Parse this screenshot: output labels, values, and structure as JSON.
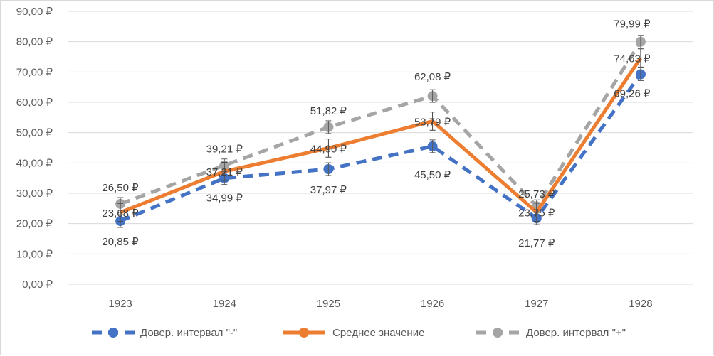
{
  "chart_data": {
    "type": "line",
    "title": "",
    "xlabel": "",
    "ylabel": "",
    "categories": [
      "1923",
      "1924",
      "1925",
      "1926",
      "1927",
      "1928"
    ],
    "ylim": [
      0,
      90
    ],
    "yticks": [
      0,
      10,
      20,
      30,
      40,
      50,
      60,
      70,
      80,
      90
    ],
    "ytick_labels": [
      "0,00 ₽",
      "10,00 ₽",
      "20,00 ₽",
      "30,00 ₽",
      "40,00 ₽",
      "50,00 ₽",
      "60,00 ₽",
      "70,00 ₽",
      "80,00 ₽",
      "90,00 ₽"
    ],
    "grid": true,
    "legend_position": "bottom",
    "series": [
      {
        "name": "Довер. интервал \"-\"",
        "values": [
          20.85,
          34.99,
          37.97,
          45.5,
          21.77,
          69.26
        ],
        "labels": [
          "20,85 ₽",
          "34,99 ₽",
          "37,97 ₽",
          "45,50 ₽",
          "21,77 ₽",
          "69,26 ₽"
        ],
        "color": "#4472c4",
        "style": "dashed"
      },
      {
        "name": "Среднее значение",
        "values": [
          23.68,
          37.21,
          44.9,
          53.79,
          23.75,
          74.63
        ],
        "labels": [
          "23,68 ₽",
          "37,21 ₽",
          "44,90 ₽",
          "53,79 ₽",
          "23,75 ₽",
          "74,63 ₽"
        ],
        "color": "#ed7d31",
        "style": "solid"
      },
      {
        "name": "Довер. интервал \"+\"",
        "values": [
          26.5,
          39.21,
          51.82,
          62.08,
          25.73,
          79.99
        ],
        "labels": [
          "26,50 ₽",
          "39,21 ₽",
          "51,82 ₽",
          "62,08 ₽",
          "25,73 ₽",
          "79,99 ₽"
        ],
        "color": "#a5a5a5",
        "style": "dashed"
      }
    ],
    "error_bar": 3
  }
}
